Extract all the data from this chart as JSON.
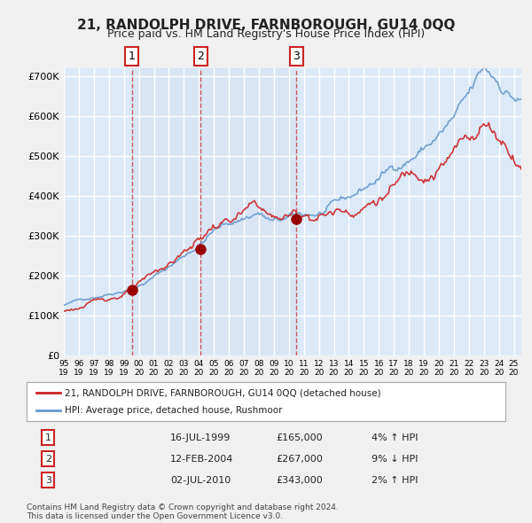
{
  "title": "21, RANDOLPH DRIVE, FARNBOROUGH, GU14 0QQ",
  "subtitle": "Price paid vs. HM Land Registry's House Price Index (HPI)",
  "ylabel": "",
  "background_color": "#dce9f8",
  "plot_bg_color": "#dce9f8",
  "grid_color": "#ffffff",
  "ylim": [
    0,
    720000
  ],
  "yticks": [
    0,
    100000,
    200000,
    300000,
    400000,
    500000,
    600000,
    700000
  ],
  "ytick_labels": [
    "£0",
    "£100K",
    "£200K",
    "£300K",
    "£400K",
    "£500K",
    "£600K",
    "£700K"
  ],
  "hpi_color": "#6699cc",
  "price_color": "#cc2222",
  "marker_color": "#990000",
  "sale_dates": [
    1999.54,
    2004.12,
    2010.5
  ],
  "sale_prices": [
    165000,
    267000,
    343000
  ],
  "sale_labels": [
    "1",
    "2",
    "3"
  ],
  "vline_dates": [
    1999.54,
    2004.12,
    2010.5
  ],
  "legend_line1": "21, RANDOLPH DRIVE, FARNBOROUGH, GU14 0QQ (detached house)",
  "legend_line2": "HPI: Average price, detached house, Rushmoor",
  "table_entries": [
    [
      "1",
      "16-JUL-1999",
      "£165,000",
      "4% ↑ HPI"
    ],
    [
      "2",
      "12-FEB-2004",
      "£267,000",
      "9% ↓ HPI"
    ],
    [
      "3",
      "02-JUL-2010",
      "£343,000",
      "2% ↑ HPI"
    ]
  ],
  "footer1": "Contains HM Land Registry data © Crown copyright and database right 2024.",
  "footer2": "This data is licensed under the Open Government Licence v3.0.",
  "xmin": 1995.0,
  "xmax": 2025.5
}
